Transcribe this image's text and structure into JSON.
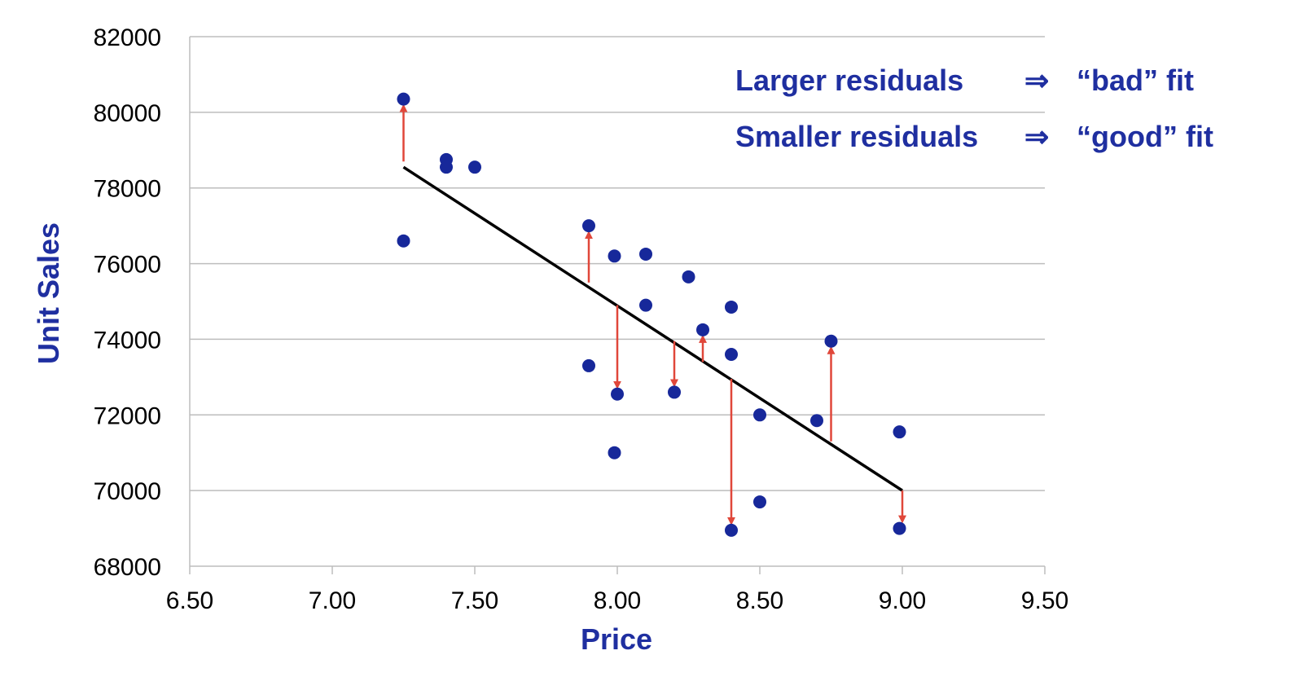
{
  "chart_data": {
    "type": "scatter",
    "xlabel": "Price",
    "ylabel": "Unit  Sales",
    "xlim": [
      6.5,
      9.5
    ],
    "ylim": [
      68000,
      82000
    ],
    "x_ticks": [
      "6.50",
      "7.00",
      "7.50",
      "8.00",
      "8.50",
      "9.00",
      "9.50"
    ],
    "y_ticks": [
      "68000",
      "70000",
      "72000",
      "74000",
      "76000",
      "78000",
      "80000",
      "82000"
    ],
    "grid": "horizontal",
    "points": [
      {
        "x": 7.25,
        "y": 80350
      },
      {
        "x": 7.25,
        "y": 76600
      },
      {
        "x": 7.4,
        "y": 78750
      },
      {
        "x": 7.4,
        "y": 78550
      },
      {
        "x": 7.5,
        "y": 78550
      },
      {
        "x": 7.9,
        "y": 77000
      },
      {
        "x": 7.9,
        "y": 73300
      },
      {
        "x": 7.99,
        "y": 76200
      },
      {
        "x": 7.99,
        "y": 71000
      },
      {
        "x": 8.0,
        "y": 72550
      },
      {
        "x": 8.1,
        "y": 76250
      },
      {
        "x": 8.1,
        "y": 74900
      },
      {
        "x": 8.2,
        "y": 72600
      },
      {
        "x": 8.25,
        "y": 75650
      },
      {
        "x": 8.3,
        "y": 74250
      },
      {
        "x": 8.4,
        "y": 74850
      },
      {
        "x": 8.4,
        "y": 73600
      },
      {
        "x": 8.4,
        "y": 68950
      },
      {
        "x": 8.5,
        "y": 72000
      },
      {
        "x": 8.5,
        "y": 69700
      },
      {
        "x": 8.7,
        "y": 71850
      },
      {
        "x": 8.75,
        "y": 73950
      },
      {
        "x": 8.99,
        "y": 71550
      },
      {
        "x": 8.99,
        "y": 69000
      }
    ],
    "regression_line": {
      "x1": 7.25,
      "y1": 78550,
      "x2": 9.0,
      "y2": 70000
    },
    "residual_arrows": [
      {
        "x": 7.25,
        "from": 78700,
        "to": 80350
      },
      {
        "x": 7.9,
        "from": 75500,
        "to": 77000
      },
      {
        "x": 8.0,
        "from": 74900,
        "to": 72550
      },
      {
        "x": 8.2,
        "from": 73950,
        "to": 72600
      },
      {
        "x": 8.3,
        "from": 73400,
        "to": 74250
      },
      {
        "x": 8.4,
        "from": 72950,
        "to": 68950
      },
      {
        "x": 8.75,
        "from": 71300,
        "to": 73950
      },
      {
        "x": 9.0,
        "from": 70000,
        "to": 69000
      }
    ],
    "annotations": [
      {
        "label": "Larger residuals",
        "arrow": "⇒",
        "result": "“bad” fit"
      },
      {
        "label": "Smaller residuals",
        "arrow": "⇒",
        "result": "“good” fit"
      }
    ],
    "colors": {
      "points": "#17289a",
      "line": "#000000",
      "residuals": "#e0473a",
      "grid": "#bdbdbd",
      "axis_title": "#1f2fa0"
    }
  }
}
